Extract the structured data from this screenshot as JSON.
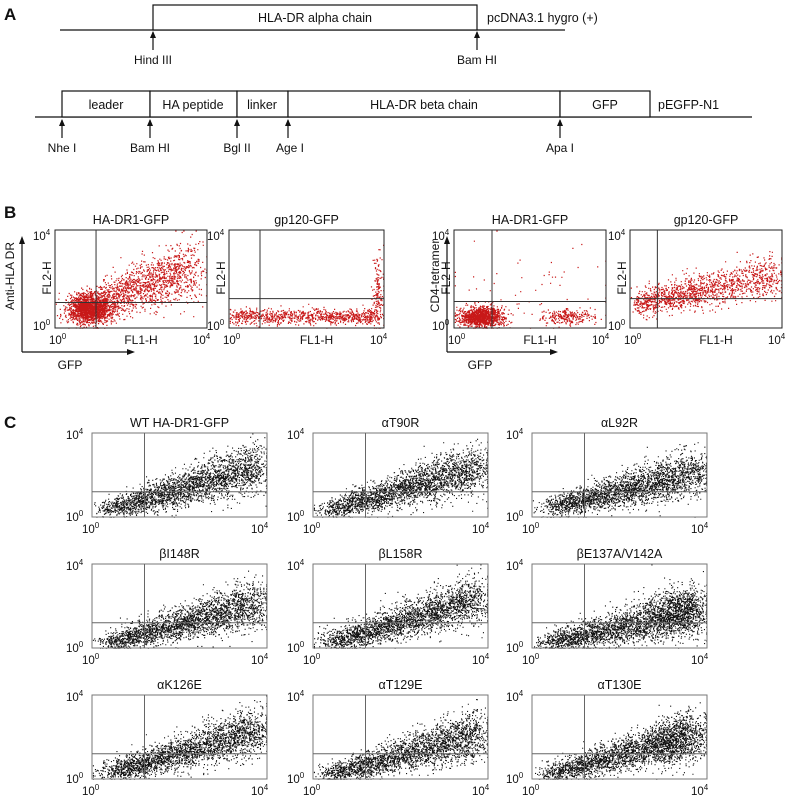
{
  "panels": {
    "a": "A",
    "b": "B",
    "c": "C"
  },
  "construct_alpha": {
    "blocks": [
      "HLA-DR alpha chain"
    ],
    "vector": "pcDNA3.1 hygro (+)",
    "sites": [
      "Hind III",
      "Bam HI"
    ]
  },
  "construct_beta": {
    "blocks": [
      "leader",
      "HA peptide",
      "linker",
      "HLA-DR beta chain",
      "GFP"
    ],
    "vector": "pEGFP-N1",
    "sites": [
      "Nhe I",
      "Bam HI",
      "Bgl II",
      "Age I",
      "Apa I"
    ]
  },
  "panel_b": {
    "groups": [
      {
        "y_group_label": "Anti-HLA DR",
        "x_group_label": "GFP",
        "plots": [
          {
            "title": "HA-DR1-GFP",
            "ylabel": "FL2-H",
            "xlabel": "FL1-H"
          },
          {
            "title": "gp120-GFP",
            "ylabel": "FL2-H",
            "xlabel": "FL1-H"
          }
        ]
      },
      {
        "y_group_label": "CD4-tetramer",
        "x_group_label": "GFP",
        "plots": [
          {
            "title": "HA-DR1-GFP",
            "ylabel": "FL2-H",
            "xlabel": "FL1-H"
          },
          {
            "title": "gp120-GFP",
            "ylabel": "FL2-H",
            "xlabel": "FL1-H"
          }
        ]
      }
    ],
    "tick_low": "10",
    "tick_high": "10",
    "exp_low": "0",
    "exp_high": "4",
    "dot_color": "#c81818"
  },
  "panel_c": {
    "titles": [
      "WT HA-DR1-GFP",
      "αT90R",
      "αL92R",
      "βI148R",
      "βL158R",
      "βE137A/V142A",
      "αK126E",
      "αT129E",
      "αT130E"
    ],
    "tick_low": "10",
    "tick_high": "10",
    "exp_low": "0",
    "exp_high": "4",
    "dot_color": "#111111"
  },
  "chart_data": [
    {
      "type": "scatter",
      "title": "HA-DR1-GFP",
      "xlabel": "FL1-H",
      "ylabel": "FL2-H",
      "axis_group_x": "GFP",
      "axis_group_y": "Anti-HLA DR",
      "xlim": [
        1,
        10000
      ],
      "ylim": [
        1,
        10000
      ],
      "log_scale": true
    },
    {
      "type": "scatter",
      "title": "gp120-GFP",
      "xlabel": "FL1-H",
      "ylabel": "FL2-H",
      "axis_group_x": "GFP",
      "axis_group_y": "Anti-HLA DR",
      "xlim": [
        1,
        10000
      ],
      "ylim": [
        1,
        10000
      ],
      "log_scale": true
    },
    {
      "type": "scatter",
      "title": "HA-DR1-GFP",
      "xlabel": "FL1-H",
      "ylabel": "FL2-H",
      "axis_group_x": "GFP",
      "axis_group_y": "CD4-tetramer",
      "xlim": [
        1,
        10000
      ],
      "ylim": [
        1,
        10000
      ],
      "log_scale": true
    },
    {
      "type": "scatter",
      "title": "gp120-GFP",
      "xlabel": "FL1-H",
      "ylabel": "FL2-H",
      "axis_group_x": "GFP",
      "axis_group_y": "CD4-tetramer",
      "xlim": [
        1,
        10000
      ],
      "ylim": [
        1,
        10000
      ],
      "log_scale": true
    },
    {
      "type": "scatter",
      "title": "WT HA-DR1-GFP",
      "xlim": [
        1,
        10000
      ],
      "ylim": [
        1,
        10000
      ],
      "log_scale": true
    },
    {
      "type": "scatter",
      "title": "αT90R",
      "xlim": [
        1,
        10000
      ],
      "ylim": [
        1,
        10000
      ],
      "log_scale": true
    },
    {
      "type": "scatter",
      "title": "αL92R",
      "xlim": [
        1,
        10000
      ],
      "ylim": [
        1,
        10000
      ],
      "log_scale": true
    },
    {
      "type": "scatter",
      "title": "βI148R",
      "xlim": [
        1,
        10000
      ],
      "ylim": [
        1,
        10000
      ],
      "log_scale": true
    },
    {
      "type": "scatter",
      "title": "βL158R",
      "xlim": [
        1,
        10000
      ],
      "ylim": [
        1,
        10000
      ],
      "log_scale": true
    },
    {
      "type": "scatter",
      "title": "βE137A/V142A",
      "xlim": [
        1,
        10000
      ],
      "ylim": [
        1,
        10000
      ],
      "log_scale": true
    },
    {
      "type": "scatter",
      "title": "αK126E",
      "xlim": [
        1,
        10000
      ],
      "ylim": [
        1,
        10000
      ],
      "log_scale": true
    },
    {
      "type": "scatter",
      "title": "αT129E",
      "xlim": [
        1,
        10000
      ],
      "ylim": [
        1,
        10000
      ],
      "log_scale": true
    },
    {
      "type": "scatter",
      "title": "αT130E",
      "xlim": [
        1,
        10000
      ],
      "ylim": [
        1,
        10000
      ],
      "log_scale": true
    }
  ]
}
